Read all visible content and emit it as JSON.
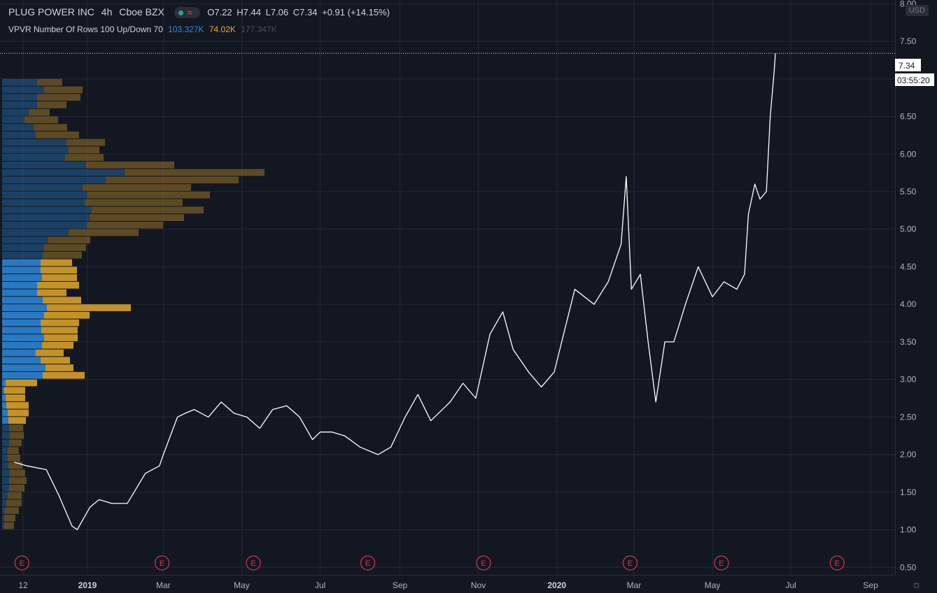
{
  "header": {
    "symbol": "PLUG POWER INC",
    "interval": "4h",
    "exchange": "Cboe BZX",
    "open": "O7.22",
    "high": "H7.44",
    "low": "L7.06",
    "close": "C7.34",
    "change": "+0.91 (+14.15%)"
  },
  "indicator": {
    "name": "VPVR Number Of Rows 100 Up/Down 70",
    "up_volume": "103.327K",
    "down_volume": "74.02K",
    "total_volume": "177.347K"
  },
  "currency_badge": "USD",
  "price_tag": "7.34",
  "countdown_tag": "03:55:20",
  "colors": {
    "background": "#131722",
    "grid": "#242836",
    "up_volume": "#2979c2",
    "down_volume": "#c39228",
    "price_line": "#ffffff",
    "event": "#d1374a"
  },
  "earnings_marker_label": "E",
  "chart_data": {
    "type": "line",
    "series": [
      {
        "x": [
          "2018-11-05",
          "2018-11-15",
          "2018-11-30",
          "2018-12-10",
          "2018-12-20",
          "2018-12-24",
          "2019-01-03",
          "2019-01-10",
          "2019-01-20",
          "2019-02-01",
          "2019-02-15",
          "2019-02-26",
          "2019-03-01",
          "2019-03-12",
          "2019-03-18",
          "2019-03-25",
          "2019-04-05",
          "2019-04-15",
          "2019-04-25",
          "2019-05-05",
          "2019-05-15",
          "2019-05-25",
          "2019-06-05",
          "2019-06-15",
          "2019-06-25",
          "2019-07-01",
          "2019-07-10",
          "2019-07-20",
          "2019-08-01",
          "2019-08-15",
          "2019-08-25",
          "2019-09-05",
          "2019-09-15",
          "2019-09-25",
          "2019-10-10",
          "2019-10-20",
          "2019-10-30",
          "2019-11-10",
          "2019-11-20",
          "2019-11-28",
          "2019-12-10",
          "2019-12-20",
          "2019-12-30",
          "2020-01-15",
          "2020-01-30",
          "2020-02-10",
          "2020-02-20",
          "2020-02-24",
          "2020-02-28",
          "2020-03-06",
          "2020-03-12",
          "2020-03-18",
          "2020-03-25",
          "2020-04-01",
          "2020-04-10",
          "2020-04-20",
          "2020-05-01",
          "2020-05-10",
          "2020-05-20",
          "2020-05-26",
          "2020-05-29",
          "2020-06-03",
          "2020-06-07",
          "2020-06-12",
          "2020-06-15",
          "2020-06-18",
          "2020-06-19"
        ],
        "values": [
          1.9,
          1.85,
          1.8,
          1.45,
          1.05,
          1.0,
          1.3,
          1.4,
          1.35,
          1.35,
          1.75,
          1.85,
          2.0,
          2.5,
          2.55,
          2.6,
          2.5,
          2.7,
          2.55,
          2.5,
          2.35,
          2.6,
          2.65,
          2.5,
          2.2,
          2.3,
          2.3,
          2.25,
          2.1,
          2.0,
          2.1,
          2.5,
          2.8,
          2.45,
          2.7,
          2.95,
          2.75,
          3.6,
          3.9,
          3.4,
          3.1,
          2.9,
          3.1,
          4.2,
          4.0,
          4.3,
          4.8,
          5.7,
          4.2,
          4.4,
          3.5,
          2.7,
          3.5,
          3.5,
          4.0,
          4.5,
          4.1,
          4.3,
          4.2,
          4.4,
          5.2,
          5.6,
          5.4,
          5.5,
          6.5,
          7.1,
          7.34
        ]
      }
    ],
    "y_ticks": [
      "8.00",
      "7.50",
      "7.00",
      "6.50",
      "6.00",
      "5.50",
      "5.00",
      "4.50",
      "4.00",
      "3.50",
      "3.00",
      "2.50",
      "2.00",
      "1.50",
      "1.00",
      "0.50"
    ],
    "x_ticks": [
      {
        "label": "12",
        "date": "2018-11-12"
      },
      {
        "label": "2019",
        "date": "2019-01-01"
      },
      {
        "label": "Mar",
        "date": "2019-03-01"
      },
      {
        "label": "May",
        "date": "2019-05-01"
      },
      {
        "label": "Jul",
        "date": "2019-07-01"
      },
      {
        "label": "Sep",
        "date": "2019-09-01"
      },
      {
        "label": "Nov",
        "date": "2019-11-01"
      },
      {
        "label": "2020",
        "date": "2020-01-01"
      },
      {
        "label": "Mar",
        "date": "2020-03-01"
      },
      {
        "label": "May",
        "date": "2020-05-01"
      },
      {
        "label": "Jul",
        "date": "2020-07-01"
      },
      {
        "label": "Sep",
        "date": "2020-09-01"
      }
    ],
    "bold_x_labels": [
      "2019",
      "2020"
    ],
    "earnings_dates": [
      "2018-11-11",
      "2019-02-28",
      "2019-05-10",
      "2019-08-07",
      "2019-11-05",
      "2020-02-27",
      "2020-05-08",
      "2020-08-06"
    ],
    "xlim": [
      "2018-10-25",
      "2020-09-20"
    ],
    "ylim": [
      0.4,
      8.05
    ],
    "last_price": 7.34,
    "volume_profile": {
      "price_low": 1.0,
      "price_high": 7.0,
      "bins": 60,
      "up": [
        3,
        3,
        4,
        6,
        8,
        10,
        10,
        11,
        9,
        8,
        8,
        10,
        11,
        10,
        9,
        8,
        6,
        5,
        3,
        5,
        58,
        62,
        55,
        48,
        57,
        60,
        56,
        55,
        60,
        64,
        58,
        50,
        50,
        57,
        55,
        55,
        58,
        60,
        66,
        95,
        122,
        125,
        128,
        118,
        122,
        115,
        148,
        175,
        120,
        90,
        95,
        92,
        48,
        45,
        32,
        38,
        50,
        50,
        60,
        50
      ],
      "down": [
        14,
        16,
        20,
        22,
        20,
        22,
        25,
        22,
        20,
        18,
        16,
        18,
        20,
        20,
        25,
        30,
        32,
        28,
        30,
        45,
        60,
        40,
        42,
        40,
        45,
        48,
        52,
        55,
        65,
        120,
        55,
        42,
        60,
        50,
        52,
        45,
        56,
        60,
        60,
        100,
        108,
        135,
        160,
        140,
        175,
        155,
        190,
        200,
        126,
        55,
        44,
        55,
        62,
        48,
        48,
        30,
        42,
        62,
        55,
        36
      ]
    }
  }
}
